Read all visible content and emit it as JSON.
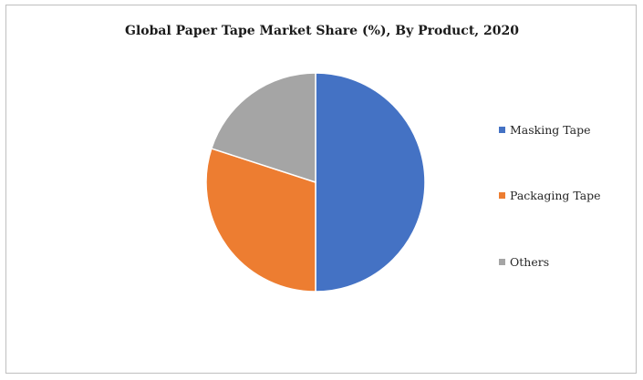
{
  "chart_data": {
    "type": "pie",
    "title": "Global Paper Tape Market Share (%), By Product, 2020",
    "legend_position": "right",
    "slices": [
      {
        "name": "Masking Tape",
        "value": 50,
        "color": "#4472c4"
      },
      {
        "name": "Packaging Tape",
        "value": 30,
        "color": "#ed7d31"
      },
      {
        "name": "Others",
        "value": 20,
        "color": "#a5a5a5"
      }
    ],
    "start_angle_deg": 0,
    "direction": "clockwise"
  }
}
